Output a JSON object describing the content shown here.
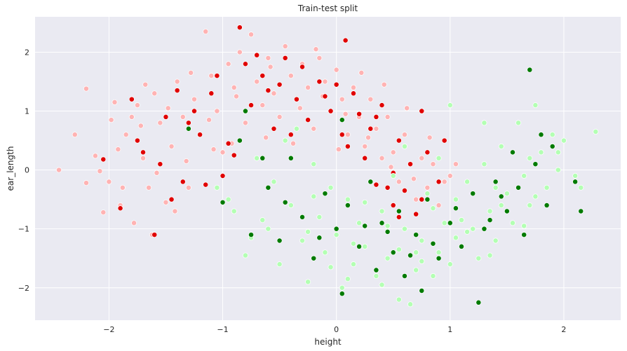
{
  "chart_data": {
    "type": "scatter",
    "title": "Train-test split",
    "xlabel": "height",
    "ylabel": "ear_length",
    "xlim": [
      -2.65,
      2.5
    ],
    "ylim": [
      -2.55,
      2.6
    ],
    "xticks": [
      -2,
      -1,
      0,
      1,
      2
    ],
    "yticks": [
      -2,
      -1,
      0,
      1,
      2
    ],
    "grid": true,
    "legend": "none",
    "background": "#eaeaf2",
    "series": [
      {
        "color": "#ffb3b3",
        "values_xy": [
          [
            -2.44,
            0.0
          ],
          [
            -2.2,
            1.38
          ],
          [
            -2.2,
            -0.22
          ],
          [
            -2.12,
            0.24
          ],
          [
            -2.05,
            -0.72
          ],
          [
            -2.0,
            -0.2
          ],
          [
            -1.95,
            1.15
          ],
          [
            -1.9,
            -0.6
          ],
          [
            -1.85,
            0.6
          ],
          [
            -1.8,
            0.9
          ],
          [
            -1.75,
            1.1
          ],
          [
            -1.7,
            0.2
          ],
          [
            -1.65,
            -0.3
          ],
          [
            -1.6,
            1.3
          ],
          [
            -1.55,
            0.8
          ],
          [
            -1.5,
            -0.55
          ],
          [
            -1.45,
            0.4
          ],
          [
            -1.4,
            1.5
          ],
          [
            -1.35,
            0.9
          ],
          [
            -1.3,
            -0.3
          ],
          [
            -1.25,
            1.2
          ],
          [
            -1.2,
            0.6
          ],
          [
            -1.15,
            2.35
          ],
          [
            -1.1,
            1.6
          ],
          [
            -1.05,
            1.0
          ],
          [
            -1.0,
            0.3
          ],
          [
            -0.95,
            1.8
          ],
          [
            -0.9,
            1.4
          ],
          [
            -0.85,
            2.0
          ],
          [
            -0.8,
            0.8
          ],
          [
            -0.75,
            2.3
          ],
          [
            -0.7,
            1.5
          ],
          [
            -0.65,
            1.1
          ],
          [
            -0.6,
            1.9
          ],
          [
            -0.55,
            1.3
          ],
          [
            -0.5,
            0.9
          ],
          [
            -0.45,
            2.1
          ],
          [
            -0.4,
            1.6
          ],
          [
            -0.35,
            1.2
          ],
          [
            -0.3,
            1.8
          ],
          [
            -0.25,
            1.4
          ],
          [
            -0.2,
            0.7
          ],
          [
            -0.15,
            1.9
          ],
          [
            -0.1,
            1.5
          ],
          [
            -0.05,
            1.0
          ],
          [
            0.0,
            1.7
          ],
          [
            0.05,
            1.2
          ],
          [
            0.1,
            0.6
          ],
          [
            0.15,
            1.4
          ],
          [
            0.2,
            0.9
          ],
          [
            0.25,
            0.4
          ],
          [
            0.3,
            1.2
          ],
          [
            0.35,
            0.7
          ],
          [
            0.4,
            0.2
          ],
          [
            0.45,
            0.9
          ],
          [
            0.5,
            0.3
          ],
          [
            0.55,
            -0.2
          ],
          [
            0.6,
            0.6
          ],
          [
            0.65,
            0.1
          ],
          [
            0.7,
            -0.5
          ],
          [
            0.75,
            0.2
          ],
          [
            0.8,
            -0.3
          ],
          [
            0.85,
            0.1
          ],
          [
            0.9,
            -0.6
          ],
          [
            0.95,
            -0.2
          ],
          [
            1.0,
            -0.1
          ],
          [
            1.05,
            0.1
          ],
          [
            -1.92,
            0.35
          ],
          [
            -1.72,
            0.75
          ],
          [
            -1.58,
            -0.05
          ],
          [
            -1.32,
            0.15
          ],
          [
            -1.12,
            0.85
          ],
          [
            -0.92,
            0.45
          ],
          [
            -0.62,
            0.55
          ],
          [
            -0.32,
            1.05
          ],
          [
            -0.12,
            1.25
          ],
          [
            0.08,
            0.95
          ],
          [
            0.28,
            0.55
          ],
          [
            0.48,
            0.05
          ],
          [
            0.68,
            -0.15
          ],
          [
            -2.3,
            0.6
          ],
          [
            -2.08,
            -0.02
          ],
          [
            -1.98,
            0.85
          ],
          [
            -1.68,
            1.45
          ],
          [
            -1.48,
            1.05
          ],
          [
            -1.28,
            1.65
          ],
          [
            -1.08,
            0.35
          ],
          [
            -0.88,
            1.25
          ],
          [
            -0.58,
            1.75
          ],
          [
            -0.38,
            0.45
          ],
          [
            -0.18,
            2.05
          ],
          [
            0.02,
            0.35
          ],
          [
            0.22,
            1.65
          ],
          [
            0.42,
            1.45
          ],
          [
            0.62,
            1.05
          ],
          [
            0.82,
            0.55
          ],
          [
            -1.78,
            -0.9
          ],
          [
            -1.62,
            -1.1
          ],
          [
            -1.88,
            -0.3
          ],
          [
            -1.42,
            -0.7
          ]
        ]
      },
      {
        "color": "#e00000",
        "values_xy": [
          [
            -2.05,
            0.18
          ],
          [
            -1.9,
            -0.65
          ],
          [
            -1.75,
            0.5
          ],
          [
            -1.6,
            -1.1
          ],
          [
            -1.5,
            0.9
          ],
          [
            -1.4,
            1.35
          ],
          [
            -1.35,
            -0.2
          ],
          [
            -1.2,
            0.6
          ],
          [
            -1.1,
            1.3
          ],
          [
            -1.0,
            -0.1
          ],
          [
            -0.95,
            0.45
          ],
          [
            -0.85,
            2.42
          ],
          [
            -0.8,
            1.8
          ],
          [
            -0.75,
            1.1
          ],
          [
            -0.65,
            1.6
          ],
          [
            -0.55,
            0.7
          ],
          [
            -0.45,
            1.9
          ],
          [
            -0.35,
            1.2
          ],
          [
            -0.25,
            0.85
          ],
          [
            -0.15,
            1.5
          ],
          [
            -0.05,
            1.0
          ],
          [
            0.05,
            0.6
          ],
          [
            0.08,
            2.2
          ],
          [
            0.15,
            1.3
          ],
          [
            0.25,
            0.2
          ],
          [
            0.35,
            0.9
          ],
          [
            0.45,
            -0.3
          ],
          [
            0.55,
            0.5
          ],
          [
            0.65,
            0.1
          ],
          [
            0.75,
            -0.5
          ],
          [
            0.8,
            0.3
          ],
          [
            0.9,
            -0.2
          ],
          [
            0.95,
            0.5
          ],
          [
            0.75,
            1.0
          ],
          [
            -1.7,
            0.3
          ],
          [
            -1.25,
            1.0
          ],
          [
            -0.9,
            0.25
          ],
          [
            -0.6,
            1.35
          ],
          [
            -0.3,
            1.75
          ],
          [
            0.0,
            1.45
          ],
          [
            0.3,
            0.7
          ],
          [
            0.5,
            -0.05
          ],
          [
            -1.8,
            1.2
          ],
          [
            -1.55,
            0.1
          ],
          [
            -1.3,
            0.8
          ],
          [
            -1.05,
            1.6
          ],
          [
            -0.7,
            1.95
          ],
          [
            -0.4,
            0.6
          ],
          [
            -0.1,
            1.25
          ],
          [
            0.2,
            0.95
          ],
          [
            0.4,
            1.1
          ],
          [
            0.6,
            -0.35
          ],
          [
            -1.45,
            -0.5
          ],
          [
            -1.15,
            -0.25
          ],
          [
            -0.5,
            1.45
          ],
          [
            0.1,
            0.4
          ],
          [
            0.5,
            -0.6
          ],
          [
            0.7,
            -0.75
          ],
          [
            0.55,
            -0.8
          ],
          [
            0.35,
            -0.25
          ]
        ]
      },
      {
        "color": "#b3ffb3",
        "values_xy": [
          [
            -1.05,
            -0.3
          ],
          [
            -0.9,
            -0.7
          ],
          [
            -0.8,
            -1.45
          ],
          [
            -0.7,
            0.2
          ],
          [
            -0.6,
            -1.0
          ],
          [
            -0.5,
            -1.6
          ],
          [
            -0.45,
            0.5
          ],
          [
            -0.4,
            -0.6
          ],
          [
            -0.3,
            -1.2
          ],
          [
            -0.25,
            -1.9
          ],
          [
            -0.2,
            0.1
          ],
          [
            -0.15,
            -0.8
          ],
          [
            -0.1,
            -1.4
          ],
          [
            -0.05,
            -0.3
          ],
          [
            0.0,
            -1.1
          ],
          [
            0.05,
            -2.0
          ],
          [
            0.1,
            -0.5
          ],
          [
            0.15,
            -1.6
          ],
          [
            0.2,
            -0.9
          ],
          [
            0.25,
            -1.3
          ],
          [
            0.3,
            -0.2
          ],
          [
            0.35,
            -1.8
          ],
          [
            0.4,
            -0.7
          ],
          [
            0.45,
            -1.5
          ],
          [
            0.5,
            -0.1
          ],
          [
            0.55,
            -2.2
          ],
          [
            0.6,
            -1.0
          ],
          [
            0.65,
            -2.28
          ],
          [
            0.7,
            -1.7
          ],
          [
            0.75,
            -1.2
          ],
          [
            0.8,
            -0.4
          ],
          [
            0.85,
            -1.8
          ],
          [
            0.9,
            -1.4
          ],
          [
            0.95,
            -0.9
          ],
          [
            1.0,
            -1.6
          ],
          [
            1.05,
            -0.5
          ],
          [
            1.1,
            -1.3
          ],
          [
            1.15,
            -0.2
          ],
          [
            1.2,
            -1.0
          ],
          [
            1.25,
            -1.5
          ],
          [
            1.3,
            0.1
          ],
          [
            1.35,
            -0.7
          ],
          [
            1.4,
            -1.2
          ],
          [
            1.45,
            0.4
          ],
          [
            1.5,
            -0.4
          ],
          [
            1.55,
            -0.9
          ],
          [
            1.6,
            0.8
          ],
          [
            1.65,
            -0.1
          ],
          [
            1.7,
            -0.6
          ],
          [
            1.75,
            1.1
          ],
          [
            1.8,
            0.3
          ],
          [
            1.85,
            -0.3
          ],
          [
            1.9,
            0.6
          ],
          [
            1.95,
            0.0
          ],
          [
            2.0,
            0.5
          ],
          [
            2.1,
            -0.1
          ],
          [
            2.15,
            -0.3
          ],
          [
            2.28,
            0.65
          ],
          [
            1.0,
            1.1
          ],
          [
            1.3,
            0.8
          ],
          [
            -0.35,
            0.7
          ],
          [
            -0.55,
            -0.2
          ],
          [
            -0.2,
            -0.45
          ],
          [
            0.1,
            -1.85
          ],
          [
            0.4,
            -1.95
          ],
          [
            0.7,
            -1.4
          ],
          [
            1.1,
            -0.85
          ],
          [
            1.4,
            -0.3
          ],
          [
            1.7,
            0.2
          ],
          [
            -0.75,
            -1.15
          ],
          [
            -0.05,
            -1.65
          ],
          [
            0.25,
            -0.55
          ],
          [
            0.55,
            -1.35
          ],
          [
            0.85,
            -0.65
          ],
          [
            1.15,
            -1.05
          ],
          [
            1.45,
            -0.6
          ],
          [
            1.75,
            -0.45
          ],
          [
            -0.95,
            -0.5
          ],
          [
            -0.65,
            -0.85
          ],
          [
            -0.25,
            -1.05
          ],
          [
            0.15,
            -1.25
          ],
          [
            0.45,
            -0.95
          ],
          [
            0.75,
            -1.55
          ],
          [
            1.05,
            -1.15
          ],
          [
            1.35,
            -1.45
          ],
          [
            1.65,
            -0.95
          ],
          [
            1.95,
            0.3
          ],
          [
            0.6,
            0.4
          ],
          [
            0.9,
            0.2
          ]
        ]
      },
      {
        "color": "#007a00",
        "values_xy": [
          [
            -1.3,
            0.7
          ],
          [
            -1.0,
            -0.55
          ],
          [
            -0.85,
            0.5
          ],
          [
            -0.8,
            1.0
          ],
          [
            -0.75,
            -1.1
          ],
          [
            -0.6,
            -0.3
          ],
          [
            -0.5,
            -1.2
          ],
          [
            -0.4,
            0.2
          ],
          [
            -0.3,
            -0.8
          ],
          [
            -0.2,
            -1.5
          ],
          [
            -0.1,
            -0.4
          ],
          [
            0.0,
            -1.0
          ],
          [
            0.05,
            -2.1
          ],
          [
            0.1,
            -0.6
          ],
          [
            0.2,
            -1.3
          ],
          [
            0.3,
            -0.2
          ],
          [
            0.35,
            -1.7
          ],
          [
            0.4,
            -0.9
          ],
          [
            0.5,
            -1.4
          ],
          [
            0.55,
            -0.7
          ],
          [
            0.6,
            -1.8
          ],
          [
            0.7,
            -1.1
          ],
          [
            0.75,
            -2.05
          ],
          [
            0.8,
            -0.5
          ],
          [
            0.9,
            -1.5
          ],
          [
            1.0,
            -0.9
          ],
          [
            1.1,
            -1.3
          ],
          [
            1.2,
            -0.4
          ],
          [
            1.25,
            -2.25
          ],
          [
            1.3,
            -1.0
          ],
          [
            1.4,
            -0.2
          ],
          [
            1.5,
            -0.7
          ],
          [
            1.55,
            0.3
          ],
          [
            1.6,
            -0.3
          ],
          [
            1.65,
            -1.1
          ],
          [
            1.7,
            1.7
          ],
          [
            1.75,
            0.1
          ],
          [
            1.8,
            0.6
          ],
          [
            1.85,
            -0.6
          ],
          [
            1.9,
            0.4
          ],
          [
            2.1,
            -0.2
          ],
          [
            2.15,
            -0.7
          ],
          [
            0.05,
            0.85
          ],
          [
            -0.45,
            -0.55
          ],
          [
            0.25,
            -0.95
          ],
          [
            0.65,
            -1.45
          ],
          [
            1.05,
            -0.65
          ],
          [
            1.45,
            -0.45
          ],
          [
            -0.65,
            0.2
          ],
          [
            -0.15,
            -1.15
          ],
          [
            0.45,
            -1.05
          ],
          [
            0.85,
            -1.25
          ],
          [
            1.35,
            -0.85
          ]
        ]
      }
    ]
  }
}
